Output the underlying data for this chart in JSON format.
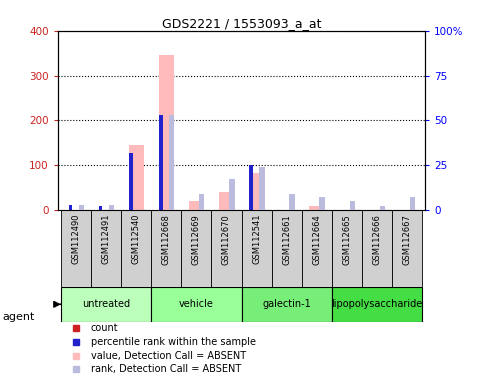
{
  "title": "GDS2221 / 1553093_a_at",
  "samples": [
    "GSM112490",
    "GSM112491",
    "GSM112540",
    "GSM112668",
    "GSM112669",
    "GSM112670",
    "GSM112541",
    "GSM112661",
    "GSM112664",
    "GSM112665",
    "GSM112666",
    "GSM112667"
  ],
  "groups": [
    {
      "label": "untreated",
      "indices": [
        0,
        1,
        2
      ],
      "color": "#bbffbb"
    },
    {
      "label": "vehicle",
      "indices": [
        3,
        4,
        5
      ],
      "color": "#99ff99"
    },
    {
      "label": "galectin-1",
      "indices": [
        6,
        7,
        8
      ],
      "color": "#77ee77"
    },
    {
      "label": "lipopolysaccharide",
      "indices": [
        9,
        10,
        11
      ],
      "color": "#44dd44"
    }
  ],
  "count_values": [
    0,
    0,
    0,
    0,
    0,
    0,
    0,
    0,
    0,
    0,
    0,
    0
  ],
  "rank_values": [
    3,
    2,
    32,
    53,
    0,
    0,
    25,
    0,
    0,
    0,
    0,
    0
  ],
  "value_absent": [
    0,
    0,
    145,
    345,
    20,
    40,
    82,
    0,
    8,
    0,
    0,
    0
  ],
  "rank_absent": [
    3,
    3,
    0,
    53,
    9,
    17,
    24,
    9,
    7,
    5,
    2,
    7
  ],
  "ylim_left": [
    0,
    400
  ],
  "ylim_right": [
    0,
    100
  ],
  "yticks_left": [
    0,
    100,
    200,
    300,
    400
  ],
  "yticks_right": [
    0,
    25,
    50,
    75,
    100
  ],
  "ytick_labels_right": [
    "0",
    "25",
    "50",
    "75",
    "100%"
  ],
  "ytick_labels_left": [
    "0",
    "100",
    "200",
    "300",
    "400"
  ],
  "count_color": "#cc2222",
  "rank_color": "#2222cc",
  "value_absent_color": "#ffbbbb",
  "rank_absent_color": "#bbbbdd",
  "bg_color": "#d0d0d0",
  "legend": [
    {
      "label": "count",
      "color": "#cc2222",
      "marker": "s"
    },
    {
      "label": "percentile rank within the sample",
      "color": "#2222cc",
      "marker": "s"
    },
    {
      "label": "value, Detection Call = ABSENT",
      "color": "#ffbbbb",
      "marker": "s"
    },
    {
      "label": "rank, Detection Call = ABSENT",
      "color": "#bbbbdd",
      "marker": "s"
    }
  ]
}
